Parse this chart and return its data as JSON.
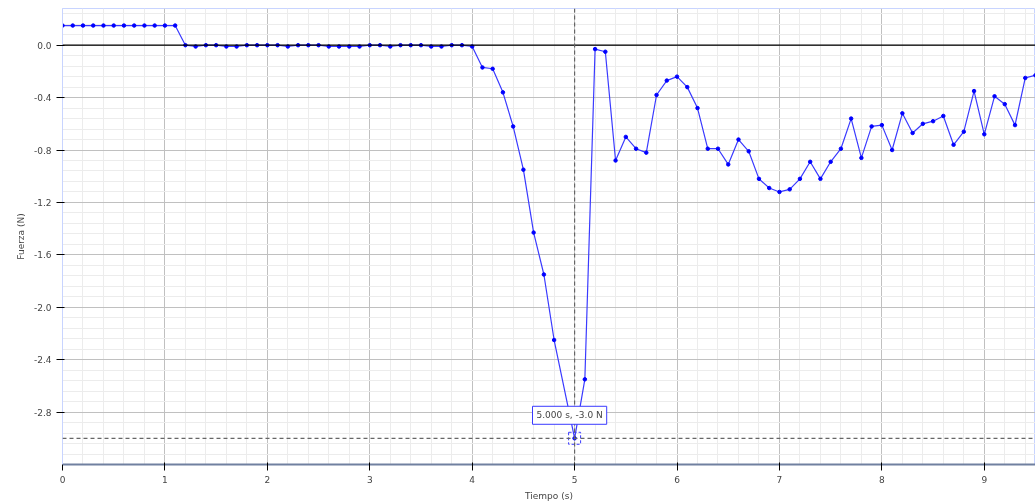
{
  "chart_data": {
    "type": "line",
    "xlabel": "Tiempo (s)",
    "ylabel": "Fuerza (N)",
    "xlim": [
      0,
      9.5
    ],
    "ylim": [
      -3.2,
      0.28
    ],
    "xticks": [
      0,
      1,
      2,
      3,
      4,
      5,
      6,
      7,
      8,
      9
    ],
    "yticks": [
      {
        "value": 0,
        "label": "0.0"
      },
      -0.4,
      -0.8,
      -1.2,
      -1.6,
      {
        "value": -2,
        "label": "-2.0"
      },
      -2.4,
      -2.8
    ],
    "grid": true,
    "marker": "circle",
    "line_style": "solid",
    "series": [
      {
        "color": "#3a3aff",
        "x": [
          0,
          0.1,
          0.2,
          0.3,
          0.4,
          0.5,
          0.6,
          0.7,
          0.8,
          0.9,
          1.0,
          1.1,
          1.2,
          1.3,
          1.4,
          1.5,
          1.6,
          1.7,
          1.8,
          1.9,
          2.0,
          2.1,
          2.2,
          2.3,
          2.4,
          2.5,
          2.6,
          2.7,
          2.8,
          2.9,
          3.0,
          3.1,
          3.2,
          3.3,
          3.4,
          3.5,
          3.6,
          3.7,
          3.8,
          3.9,
          4.0,
          4.1,
          4.2,
          4.3,
          4.4,
          4.5,
          4.6,
          4.7,
          4.8,
          5.0,
          5.1,
          5.2,
          5.3,
          5.4,
          5.5,
          5.6,
          5.7,
          5.8,
          5.9,
          6.0,
          6.1,
          6.2,
          6.3,
          6.4,
          6.5,
          6.6,
          6.7,
          6.8,
          6.9,
          7.0,
          7.1,
          7.2,
          7.3,
          7.4,
          7.5,
          7.6,
          7.7,
          7.8,
          7.9,
          8.0,
          8.1,
          8.2,
          8.3,
          8.4,
          8.5,
          8.6,
          8.7,
          8.8,
          8.9,
          9.0,
          9.1,
          9.2,
          9.3,
          9.4,
          9.5
        ],
        "values": [
          0.15,
          0.15,
          0.15,
          0.15,
          0.15,
          0.15,
          0.15,
          0.15,
          0.15,
          0.15,
          0.15,
          0.15,
          0.0,
          -0.01,
          0.0,
          0.0,
          -0.01,
          -0.01,
          0.0,
          0.0,
          0.0,
          0.0,
          -0.01,
          0.0,
          0.0,
          0.0,
          -0.01,
          -0.01,
          -0.01,
          -0.01,
          0.0,
          0.0,
          -0.01,
          0.0,
          0.0,
          0.0,
          -0.01,
          -0.01,
          0.0,
          0.0,
          -0.01,
          -0.17,
          -0.18,
          -0.36,
          -0.62,
          -0.95,
          -1.43,
          -1.75,
          -2.25,
          -3.0,
          -2.55,
          -0.03,
          -0.05,
          -0.88,
          -0.7,
          -0.79,
          -0.82,
          -0.38,
          -0.27,
          -0.24,
          -0.32,
          -0.48,
          -0.79,
          -0.79,
          -0.91,
          -0.72,
          -0.81,
          -1.02,
          -1.09,
          -1.12,
          -1.1,
          -1.02,
          -0.89,
          -1.02,
          -0.89,
          -0.79,
          -0.56,
          -0.86,
          -0.62,
          -0.61,
          -0.8,
          -0.52,
          -0.67,
          -0.6,
          -0.58,
          -0.54,
          -0.76,
          -0.66,
          -0.35,
          -0.68,
          -0.39,
          -0.45,
          -0.61,
          -0.25,
          -0.23
        ]
      }
    ],
    "ref_lines": [
      {
        "axis": "y",
        "value": 0,
        "color": "#000000",
        "line_style": "solid"
      },
      {
        "axis": "x",
        "value": 5,
        "color": "#666666",
        "line_style": "dashed"
      },
      {
        "axis": "y",
        "value": -3,
        "color": "#666666",
        "line_style": "dashed"
      }
    ],
    "annotations": [
      {
        "text": "5.000 s, -3.0 N",
        "x": 5,
        "y": -3
      }
    ]
  }
}
